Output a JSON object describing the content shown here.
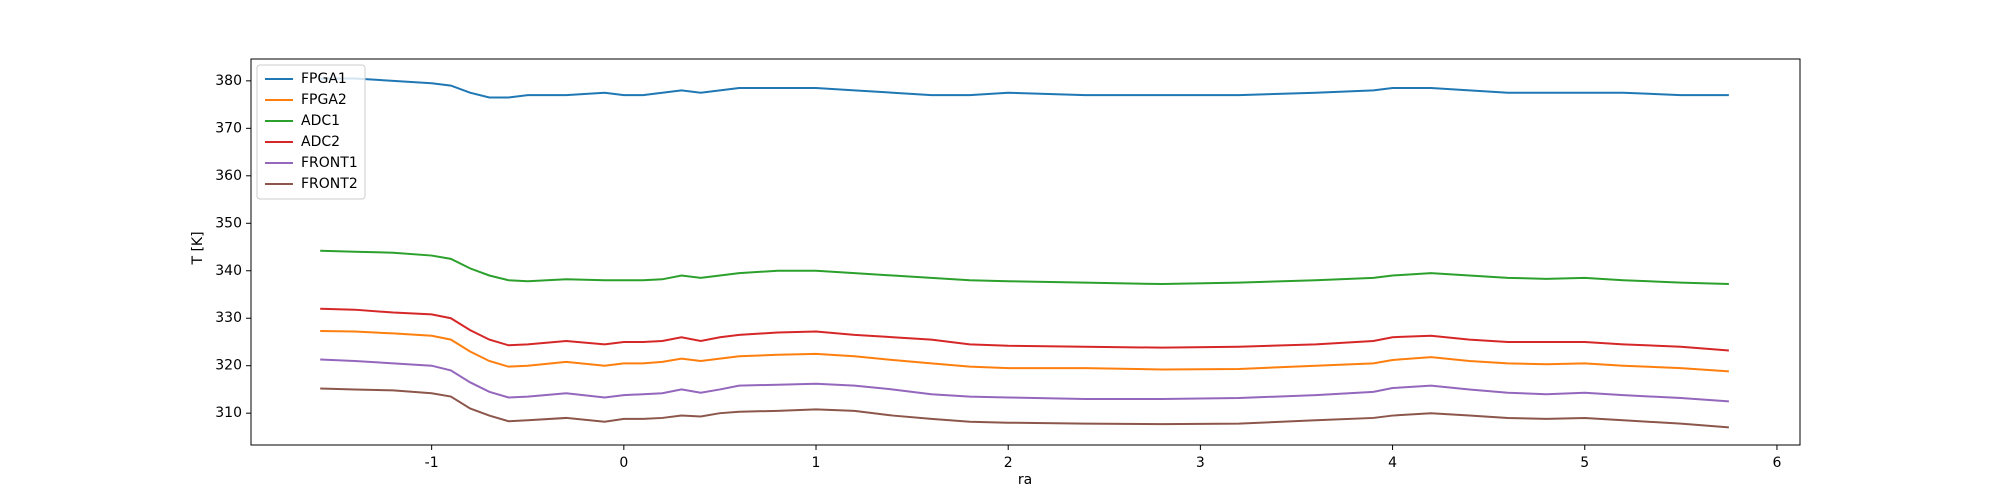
{
  "chart_data": {
    "type": "line",
    "x_label": "ra",
    "y_label": "T [K]",
    "x": [
      -1.58,
      -1.4,
      -1.2,
      -1.0,
      -0.9,
      -0.8,
      -0.7,
      -0.6,
      -0.5,
      -0.3,
      -0.1,
      0,
      0.1,
      0.2,
      0.3,
      0.4,
      0.5,
      0.6,
      0.8,
      1.0,
      1.2,
      1.4,
      1.6,
      1.8,
      2.0,
      2.4,
      2.8,
      3.2,
      3.6,
      3.9,
      4.0,
      4.2,
      4.4,
      4.6,
      4.8,
      5.0,
      5.2,
      5.5,
      5.75
    ],
    "series": [
      {
        "name": "FPGA1",
        "color": "#1f77b4",
        "values": [
          380.5,
          380.5,
          380,
          379.5,
          379,
          377.5,
          376.5,
          376.5,
          377,
          377,
          377.5,
          377,
          377,
          377.5,
          378,
          377.5,
          378,
          378.5,
          378.5,
          378.5,
          378,
          377.5,
          377,
          377,
          377.5,
          377,
          377,
          377,
          377.5,
          378,
          378.5,
          378.5,
          378,
          377.5,
          377.5,
          377.5,
          377.5,
          377,
          377
        ]
      },
      {
        "name": "FPGA2",
        "color": "#ff7f0e",
        "values": [
          327.3,
          327.2,
          326.8,
          326.3,
          325.5,
          323,
          321,
          319.8,
          320,
          320.8,
          320,
          320.5,
          320.5,
          320.8,
          321.5,
          321,
          321.5,
          322,
          322.3,
          322.5,
          322,
          321.2,
          320.5,
          319.8,
          319.5,
          319.5,
          319.2,
          319.3,
          320,
          320.5,
          321.2,
          321.8,
          321,
          320.5,
          320.3,
          320.5,
          320,
          319.5,
          318.8
        ]
      },
      {
        "name": "ADC1",
        "color": "#2ca02c",
        "values": [
          344.2,
          344,
          343.8,
          343.2,
          342.5,
          340.5,
          339,
          338,
          337.8,
          338.2,
          338,
          338,
          338,
          338.2,
          339,
          338.5,
          339,
          339.5,
          340,
          340,
          339.5,
          339,
          338.5,
          338,
          337.8,
          337.5,
          337.2,
          337.5,
          338,
          338.5,
          339,
          339.5,
          339,
          338.5,
          338.3,
          338.5,
          338,
          337.5,
          337.2
        ]
      },
      {
        "name": "ADC2",
        "color": "#d62728",
        "values": [
          332,
          331.8,
          331.2,
          330.8,
          330,
          327.5,
          325.5,
          324.3,
          324.5,
          325.2,
          324.5,
          325,
          325,
          325.2,
          326,
          325.2,
          326,
          326.5,
          327,
          327.2,
          326.5,
          326,
          325.5,
          324.5,
          324.2,
          324,
          323.8,
          324,
          324.5,
          325.2,
          326,
          326.3,
          325.5,
          325,
          325,
          325,
          324.5,
          324,
          323.2
        ]
      },
      {
        "name": "FRONT1",
        "color": "#9467bd",
        "values": [
          321.3,
          321,
          320.5,
          320,
          319,
          316.5,
          314.5,
          313.3,
          313.5,
          314.2,
          313.3,
          313.8,
          314,
          314.2,
          315,
          314.3,
          315,
          315.8,
          316,
          316.2,
          315.8,
          315,
          314,
          313.5,
          313.3,
          313,
          313,
          313.2,
          313.8,
          314.5,
          315.3,
          315.8,
          315,
          314.3,
          314,
          314.3,
          313.8,
          313.2,
          312.5
        ]
      },
      {
        "name": "FRONT2",
        "color": "#8c564b",
        "values": [
          315.2,
          315,
          314.8,
          314.2,
          313.5,
          311,
          309.5,
          308.3,
          308.5,
          309,
          308.2,
          308.8,
          308.8,
          309,
          309.5,
          309.3,
          310,
          310.3,
          310.5,
          310.8,
          310.5,
          309.5,
          308.8,
          308.2,
          308,
          307.8,
          307.7,
          307.8,
          308.5,
          309,
          309.5,
          310,
          309.5,
          309,
          308.8,
          309,
          308.5,
          307.8,
          307
        ]
      }
    ],
    "xlim": [
      -1.94,
      6.12
    ],
    "xticks": [
      -1,
      0,
      1,
      2,
      3,
      4,
      5,
      6
    ],
    "ylim": [
      303.3,
      384.6
    ],
    "yticks": [
      310,
      320,
      330,
      340,
      350,
      360,
      370,
      380
    ],
    "legend": "upper left"
  }
}
